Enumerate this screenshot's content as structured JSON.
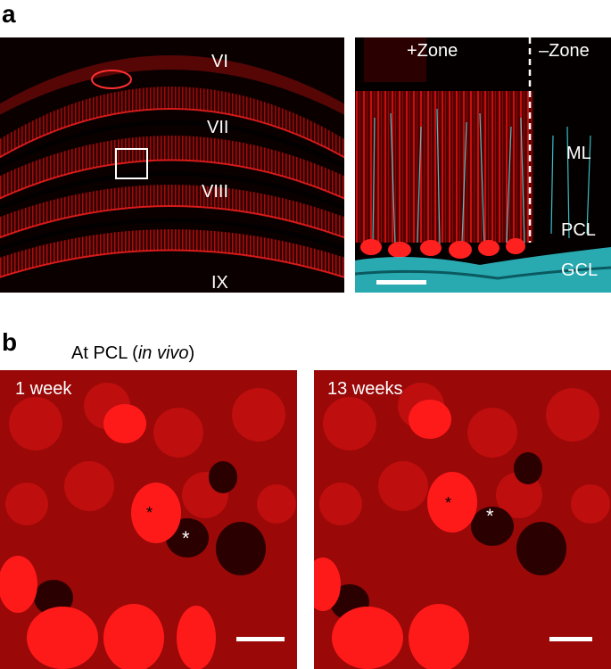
{
  "panel_a": {
    "letter": "a",
    "left_image": {
      "lobule_labels": [
        "VI",
        "VII",
        "VIII",
        "IX"
      ]
    },
    "right_image": {
      "zone_plus": "+Zone",
      "zone_minus": "–Zone",
      "layer_labels": [
        "ML",
        "PCL",
        "GCL"
      ]
    }
  },
  "panel_b": {
    "letter": "b",
    "caption_prefix": "At PCL (",
    "caption_italic": "in vivo",
    "caption_suffix": ")",
    "left_image": {
      "timepoint": "1 week",
      "markers": [
        "*",
        "*"
      ]
    },
    "right_image": {
      "timepoint": "13 weeks",
      "markers": [
        "*",
        "*"
      ]
    }
  },
  "colors": {
    "red_signal": "#e01010",
    "cyan_signal": "#40e0e8",
    "background": "#050000"
  }
}
